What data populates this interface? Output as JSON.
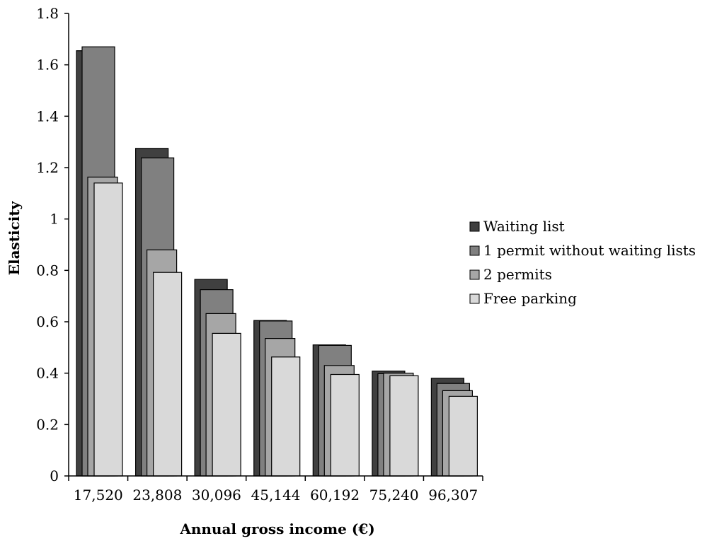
{
  "chart_data": {
    "type": "bar",
    "title": "",
    "xlabel": "Annual  gross income (€)",
    "ylabel": "Elasticity",
    "ylim": [
      0,
      1.8
    ],
    "yticks": [
      "0",
      "0.2",
      "0.4",
      "0.6",
      "0.8",
      "1",
      "1.2",
      "1.4",
      "1.6",
      "1.8"
    ],
    "categories": [
      "17,520",
      "23,808",
      "30,096",
      "45,144",
      "60,192",
      "75,240",
      "96,307"
    ],
    "series": [
      {
        "name": "Waiting list",
        "color": "#404040",
        "values": [
          1.655,
          1.275,
          0.765,
          0.605,
          0.51,
          0.408,
          0.38
        ]
      },
      {
        "name": "1 permit without waiting lists",
        "color": "#808080",
        "values": [
          1.67,
          1.238,
          0.725,
          0.603,
          0.508,
          0.398,
          0.36
        ]
      },
      {
        "name": "2 permits",
        "color": "#a6a6a6",
        "values": [
          1.163,
          0.88,
          0.632,
          0.535,
          0.43,
          0.4,
          0.332
        ]
      },
      {
        "name": "Free parking",
        "color": "#d9d9d9",
        "values": [
          1.14,
          0.792,
          0.555,
          0.463,
          0.395,
          0.39,
          0.31
        ]
      }
    ],
    "grid": false,
    "legend_position": "right"
  }
}
